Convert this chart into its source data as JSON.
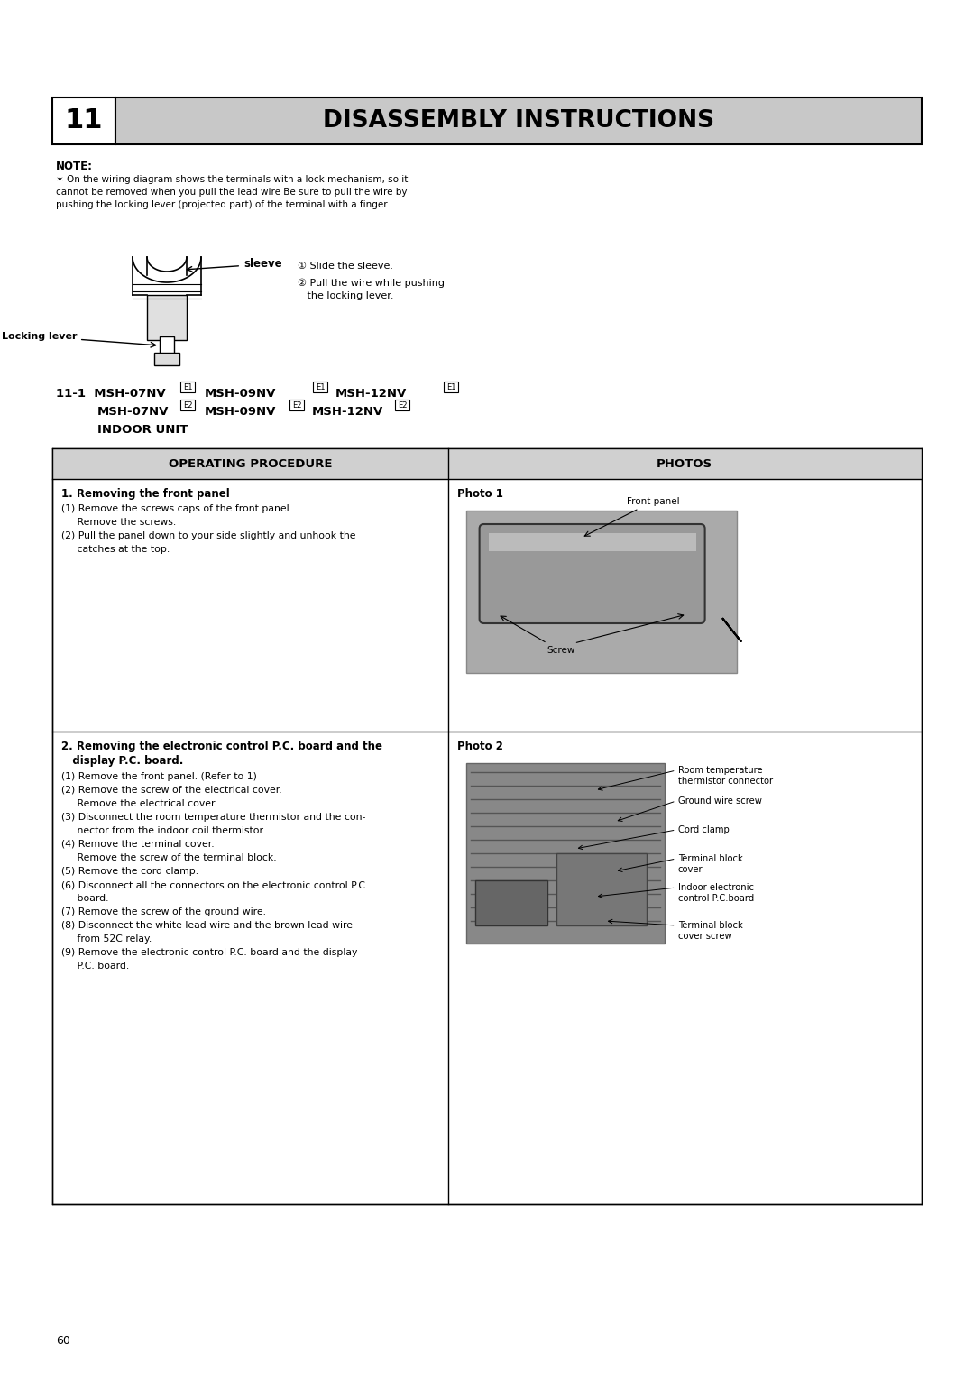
{
  "page_number": "60",
  "bg_color": "#ffffff",
  "header_bg": "#c8c8c8",
  "header_number": "11",
  "header_title": "DISASSEMBLY INSTRUCTIONS",
  "note_title": "NOTE:",
  "note_text": "✶ On the wiring diagram shows the terminals with a lock mechanism, so it\ncannot be removed when you pull the lead wire Be sure to pull the wire by\npushing the locking lever (projected part) of the terminal with a finger.",
  "sleeve_label": "sleeve",
  "locking_lever_label": "Locking lever",
  "step1_label": "① Slide the sleeve.",
  "step2_label": "② Pull the wire while pushing\n   the locking lever.",
  "section_title_line1": "11-1  MSH-07NV",
  "section_title_line2": "MSH-09NV",
  "section_title_line3": "MSH-12NV",
  "section_sub1": "MSH-07NV",
  "section_sub2": "MSH-09NV",
  "section_sub3": "MSH-12NV",
  "indoor_unit": "INDOOR UNIT",
  "table_header_left": "OPERATING PROCEDURE",
  "table_header_right": "PHOTOS",
  "row1_title": "1. Removing the front panel",
  "row1_step1": "(1) Remove the screws caps of the front panel.",
  "row1_step1b": "     Remove the screws.",
  "row1_step2": "(2) Pull the panel down to your side slightly and unhook the",
  "row1_step2b": "     catches at the top.",
  "row1_photo_label": "Photo 1",
  "row1_annot1": "Front panel",
  "row1_annot2": "Screw",
  "row2_title": "2. Removing the electronic control P.C. board and the",
  "row2_title2": "   display P.C. board.",
  "row2_steps": [
    "(1) Remove the front panel. (Refer to 1)",
    "(2) Remove the screw of the electrical cover.",
    "     Remove the electrical cover.",
    "(3) Disconnect the room temperature thermistor and the con-",
    "     nector from the indoor coil thermistor.",
    "(4) Remove the terminal cover.",
    "     Remove the screw of the terminal block.",
    "(5) Remove the cord clamp.",
    "(6) Disconnect all the connectors on the electronic control P.C.",
    "     board.",
    "(7) Remove the screw of the ground wire.",
    "(8) Disconnect the white lead wire and the brown lead wire",
    "     from 52C relay.",
    "(9) Remove the electronic control P.C. board and the display",
    "     P.C. board."
  ],
  "row2_photo_label": "Photo 2",
  "row2_annots": [
    "Room temperature\nthermistor connector",
    "Ground wire screw",
    "Cord clamp",
    "Terminal block\ncover",
    "Indoor electronic\ncontrol P.C.board",
    "Terminal block\ncover screw"
  ]
}
